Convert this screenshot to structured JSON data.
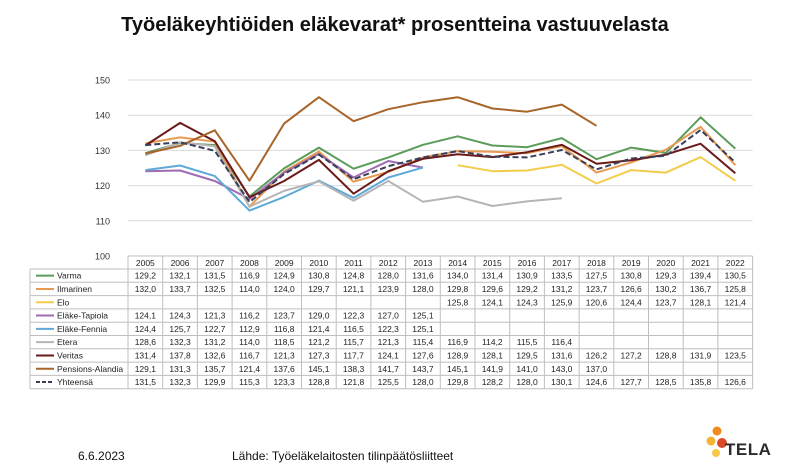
{
  "title": "Työeläkeyhtiöiden eläkevarat* prosentteina vastuuvelasta",
  "footer": {
    "date": "6.6.2023",
    "source": "Lähde: Työeläkelaitosten tilinpäätösliitteet"
  },
  "logo": {
    "text": "TELA",
    "icon": "tela-dots-icon",
    "colors": [
      "#f08a1c",
      "#f5b335",
      "#d8492a",
      "#f7c74a"
    ]
  },
  "chart_data": {
    "type": "line",
    "title": "Työeläkeyhtiöiden eläkevarat* prosentteina vastuuvelasta",
    "ylim": [
      100,
      150
    ],
    "yticks": [
      "100",
      "110",
      "120",
      "130",
      "140",
      "150"
    ],
    "grid": true,
    "legend": "table-below",
    "categories": [
      "2005",
      "2006",
      "2007",
      "2008",
      "2009",
      "2010",
      "2011",
      "2012",
      "2013",
      "2014",
      "2015",
      "2016",
      "2017",
      "2018",
      "2019",
      "2020",
      "2021",
      "2022"
    ],
    "series": [
      {
        "name": "Varma",
        "color": "#5b9c5a",
        "dashed": false,
        "values": [
          129.2,
          132.1,
          131.5,
          116.9,
          124.9,
          130.8,
          124.8,
          128.0,
          131.6,
          134.0,
          131.4,
          130.9,
          133.5,
          127.5,
          130.8,
          129.3,
          139.4,
          130.5
        ],
        "labels": [
          "129,2",
          "132,1",
          "131,5",
          "116,9",
          "124,9",
          "130,8",
          "124,8",
          "128,0",
          "131,6",
          "134,0",
          "131,4",
          "130,9",
          "133,5",
          "127,5",
          "130,8",
          "129,3",
          "139,4",
          "130,5"
        ]
      },
      {
        "name": "Ilmarinen",
        "color": "#e89a52",
        "dashed": false,
        "values": [
          132.0,
          133.7,
          132.5,
          114.0,
          124.0,
          129.7,
          121.1,
          123.9,
          128.0,
          129.8,
          129.6,
          129.2,
          131.2,
          123.7,
          126.6,
          130.2,
          136.7,
          125.8
        ],
        "labels": [
          "132,0",
          "133,7",
          "132,5",
          "114,0",
          "124,0",
          "129,7",
          "121,1",
          "123,9",
          "128,0",
          "129,8",
          "129,6",
          "129,2",
          "131,2",
          "123,7",
          "126,6",
          "130,2",
          "136,7",
          "125,8"
        ]
      },
      {
        "name": "Elo",
        "color": "#f2cc4a",
        "dashed": false,
        "values": [
          null,
          null,
          null,
          null,
          null,
          null,
          null,
          null,
          null,
          125.8,
          124.1,
          124.3,
          125.9,
          120.6,
          124.4,
          123.7,
          128.1,
          121.4
        ],
        "labels": [
          "",
          "",
          "",
          "",
          "",
          "",
          "",
          "",
          "",
          "125,8",
          "124,1",
          "124,3",
          "125,9",
          "120,6",
          "124,4",
          "123,7",
          "128,1",
          "121,4"
        ]
      },
      {
        "name": "Eläke-Tapiola",
        "color": "#a06bb3",
        "dashed": false,
        "values": [
          124.1,
          124.3,
          121.3,
          116.2,
          123.7,
          129.0,
          122.3,
          127.0,
          125.1,
          null,
          null,
          null,
          null,
          null,
          null,
          null,
          null,
          null
        ],
        "labels": [
          "124,1",
          "124,3",
          "121,3",
          "116,2",
          "123,7",
          "129,0",
          "122,3",
          "127,0",
          "125,1",
          "",
          "",
          "",
          "",
          "",
          "",
          "",
          "",
          ""
        ]
      },
      {
        "name": "Eläke-Fennia",
        "color": "#5ea9d8",
        "dashed": false,
        "values": [
          124.4,
          125.7,
          122.7,
          112.9,
          116.8,
          121.4,
          116.5,
          122.3,
          125.1,
          null,
          null,
          null,
          null,
          null,
          null,
          null,
          null,
          null
        ],
        "labels": [
          "124,4",
          "125,7",
          "122,7",
          "112,9",
          "116,8",
          "121,4",
          "116,5",
          "122,3",
          "125,1",
          "",
          "",
          "",
          "",
          "",
          "",
          "",
          "",
          ""
        ]
      },
      {
        "name": "Etera",
        "color": "#b5b5b5",
        "dashed": false,
        "values": [
          128.6,
          132.3,
          131.2,
          114.0,
          118.5,
          121.2,
          115.7,
          121.3,
          115.4,
          116.9,
          114.2,
          115.5,
          116.4,
          null,
          null,
          null,
          null,
          null
        ],
        "labels": [
          "128,6",
          "132,3",
          "131,2",
          "114,0",
          "118,5",
          "121,2",
          "115,7",
          "121,3",
          "115,4",
          "116,9",
          "114,2",
          "115,5",
          "116,4",
          "",
          "",
          "",
          "",
          ""
        ]
      },
      {
        "name": "Veritas",
        "color": "#6b1a1a",
        "dashed": false,
        "values": [
          131.4,
          137.8,
          132.6,
          116.7,
          121.3,
          127.3,
          117.7,
          124.1,
          127.6,
          128.9,
          128.1,
          129.5,
          131.6,
          126.2,
          127.2,
          128.8,
          131.9,
          123.5
        ],
        "labels": [
          "131,4",
          "137,8",
          "132,6",
          "116,7",
          "121,3",
          "127,3",
          "117,7",
          "124,1",
          "127,6",
          "128,9",
          "128,1",
          "129,5",
          "131,6",
          "126,2",
          "127,2",
          "128,8",
          "131,9",
          "123,5"
        ]
      },
      {
        "name": "Pensions-Alandia",
        "color": "#a8652a",
        "dashed": false,
        "values": [
          129.1,
          131.3,
          135.7,
          121.4,
          137.6,
          145.1,
          138.3,
          141.7,
          143.7,
          145.1,
          141.9,
          141.0,
          143.0,
          137.0,
          null,
          null,
          null,
          null
        ],
        "labels": [
          "129,1",
          "131,3",
          "135,7",
          "121,4",
          "137,6",
          "145,1",
          "138,3",
          "141,7",
          "143,7",
          "145,1",
          "141,9",
          "141,0",
          "143,0",
          "137,0",
          "",
          "",
          "",
          ""
        ]
      },
      {
        "name": "Yhteensä",
        "color": "#3a3f5c",
        "dashed": true,
        "values": [
          131.5,
          132.3,
          129.9,
          115.3,
          123.3,
          128.8,
          121.8,
          125.5,
          128.0,
          129.8,
          128.2,
          128.0,
          130.1,
          124.6,
          127.7,
          128.5,
          135.8,
          126.6
        ],
        "labels": [
          "131,5",
          "132,3",
          "129,9",
          "115,3",
          "123,3",
          "128,8",
          "121,8",
          "125,5",
          "128,0",
          "129,8",
          "128,2",
          "128,0",
          "130,1",
          "124,6",
          "127,7",
          "128,5",
          "135,8",
          "126,6"
        ]
      }
    ]
  }
}
